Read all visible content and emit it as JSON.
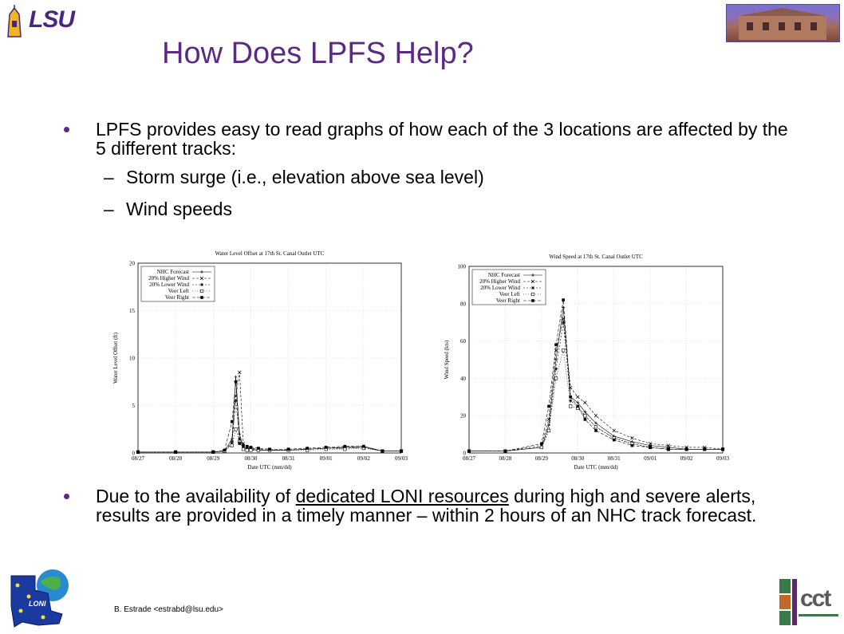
{
  "slide": {
    "title": "How Does LPFS Help?",
    "logo_text": "LSU",
    "bullet1": "LPFS provides easy to read graphs of how each of the 3 locations  are affected by the 5 different tracks:",
    "sub1": "Storm surge (i.e., elevation above sea level)",
    "sub2": "Wind speeds",
    "bullet2_a": "Due to the availability of ",
    "bullet2_link": "dedicated LONI resources",
    "bullet2_b": " during high and severe alerts, results are provided in a timely manner – within 2 hours of an NHC track forecast.",
    "sub_dash": "–",
    "footer": "B. Estrade <estrabd@lsu.edu>",
    "loni_label": "LONI",
    "cct_label": "cct",
    "colors": {
      "title": "#5b2a86",
      "lsu_gold": "#f0b323",
      "lsu_purple": "#4a2683"
    }
  },
  "chart_data": [
    {
      "type": "line",
      "title": "Water Level Offset at 17th St. Canal Outlet UTC",
      "xlabel": "Date UTC (mm/dd)",
      "ylabel": "Water Level Offset (ft)",
      "ylim": [
        0,
        20
      ],
      "yticks": [
        "0",
        "5",
        "10",
        "15",
        "20"
      ],
      "xticks": [
        "08/27",
        "08/28",
        "08/29",
        "08/30",
        "08/31",
        "09/01",
        "09/02",
        "09/03"
      ],
      "legend": [
        "NHC Forecast",
        "20% Higher Wind",
        "20% Lower Wind",
        "Veer Left",
        "Veer Right"
      ],
      "legend_placement": "top-left",
      "grid": true,
      "x": [
        0,
        1,
        2,
        2.3,
        2.5,
        2.6,
        2.7,
        2.8,
        2.9,
        3.0,
        3.2,
        3.5,
        4,
        4.5,
        5,
        5.5,
        6,
        6.5,
        7
      ],
      "series": [
        {
          "name": "NHC Forecast",
          "values": [
            0.1,
            0.1,
            0.1,
            0.2,
            1.5,
            8.0,
            2.0,
            0.6,
            0.5,
            0.4,
            0.3,
            0.3,
            0.3,
            0.4,
            0.5,
            0.6,
            0.7,
            0.2,
            0.2
          ]
        },
        {
          "name": "20% Higher Wind",
          "values": [
            0.1,
            0.1,
            0.1,
            0.2,
            1.0,
            6.0,
            8.5,
            1.0,
            0.6,
            0.5,
            0.4,
            0.3,
            0.3,
            0.4,
            0.5,
            0.5,
            0.6,
            0.2,
            0.2
          ]
        },
        {
          "name": "20% Lower Wind",
          "values": [
            0.1,
            0.1,
            0.1,
            0.2,
            1.2,
            5.5,
            1.5,
            0.5,
            0.4,
            0.3,
            0.3,
            0.3,
            0.3,
            0.4,
            0.5,
            0.5,
            0.6,
            0.2,
            0.2
          ]
        },
        {
          "name": "Veer Left",
          "values": [
            0.1,
            0.1,
            0.1,
            0.2,
            0.8,
            2.5,
            1.2,
            0.4,
            0.3,
            0.3,
            0.3,
            0.3,
            0.3,
            0.3,
            0.4,
            0.4,
            0.5,
            0.2,
            0.2
          ]
        },
        {
          "name": "Veer Right",
          "values": [
            0.1,
            0.1,
            0.1,
            0.3,
            3.3,
            7.5,
            1.0,
            0.8,
            0.7,
            0.6,
            0.5,
            0.4,
            0.4,
            0.5,
            0.6,
            0.7,
            0.7,
            0.2,
            0.2
          ]
        }
      ]
    },
    {
      "type": "line",
      "title": "Wind Speed at 17th St. Canal Outlet UTC",
      "xlabel": "Date UTC (mm/dd)",
      "ylabel": "Wind Speed (kts)",
      "ylim": [
        0,
        100
      ],
      "yticks": [
        "0",
        "20",
        "40",
        "60",
        "80",
        "100"
      ],
      "xticks": [
        "08/27",
        "08/28",
        "08/29",
        "08/30",
        "08/31",
        "09/01",
        "09/02",
        "09/03"
      ],
      "legend": [
        "NHC Forecast",
        "20% Higher Wind",
        "20% Lower Wind",
        "Veer Left",
        "Veer Right"
      ],
      "legend_placement": "top-left",
      "grid": true,
      "x": [
        0,
        1,
        2,
        2.2,
        2.4,
        2.6,
        2.8,
        3.0,
        3.2,
        3.5,
        4,
        4.5,
        5,
        5.5,
        6,
        6.5,
        7
      ],
      "series": [
        {
          "name": "NHC Forecast",
          "values": [
            1,
            1,
            3,
            15,
            50,
            78,
            30,
            27,
            22,
            16,
            9,
            6,
            4,
            3,
            2,
            2,
            2
          ]
        },
        {
          "name": "20% Higher Wind",
          "values": [
            1,
            1,
            4,
            18,
            55,
            72,
            35,
            30,
            27,
            20,
            12,
            8,
            5,
            4,
            3,
            3,
            2
          ]
        },
        {
          "name": "20% Lower Wind",
          "values": [
            1,
            1,
            3,
            12,
            45,
            70,
            28,
            25,
            20,
            14,
            8,
            5,
            3,
            2,
            2,
            2,
            2
          ]
        },
        {
          "name": "Veer Left",
          "values": [
            1,
            1,
            3,
            12,
            40,
            55,
            25,
            24,
            20,
            14,
            8,
            5,
            3,
            2,
            2,
            2,
            2
          ]
        },
        {
          "name": "Veer Right",
          "values": [
            1,
            1,
            5,
            25,
            58,
            82,
            30,
            25,
            18,
            12,
            7,
            4,
            3,
            2,
            2,
            2,
            2
          ]
        }
      ]
    }
  ]
}
